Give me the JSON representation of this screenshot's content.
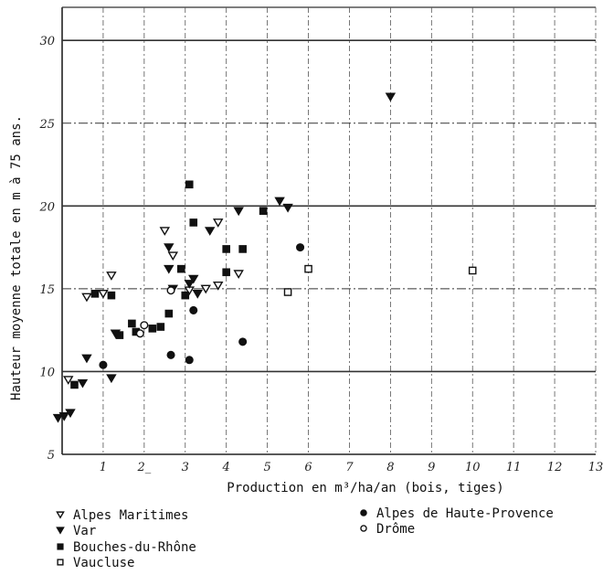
{
  "chart_data": {
    "type": "scatter",
    "xlabel": "Production en m³/ha/an (bois, tiges)",
    "ylabel": "Hauteur moyenne totale en m à 75 ans.",
    "xlim": [
      0,
      13
    ],
    "ylim": [
      5,
      32
    ],
    "x_ticks": [
      {
        "value": 1,
        "label": "1"
      },
      {
        "value": 2,
        "label": "2_"
      },
      {
        "value": 3,
        "label": "3"
      },
      {
        "value": 4,
        "label": "4"
      },
      {
        "value": 5,
        "label": "5"
      },
      {
        "value": 6,
        "label": "6"
      },
      {
        "value": 7,
        "label": "7"
      },
      {
        "value": 8,
        "label": "8"
      },
      {
        "value": 9,
        "label": "9"
      },
      {
        "value": 10,
        "label": "10"
      },
      {
        "value": 11,
        "label": "11"
      },
      {
        "value": 12,
        "label": "12"
      },
      {
        "value": 13,
        "label": "13"
      }
    ],
    "y_ticks": [
      {
        "value": 5,
        "label": "5"
      },
      {
        "value": 10,
        "label": "10"
      },
      {
        "value": 15,
        "label": "15"
      },
      {
        "value": 20,
        "label": "20"
      },
      {
        "value": 25,
        "label": "25"
      },
      {
        "value": 30,
        "label": "30"
      }
    ],
    "grid": true,
    "legend_position": "bottom",
    "series": [
      {
        "name": "Alpes Maritimes",
        "marker": "triangle-down-open",
        "points": [
          [
            0.15,
            9.5
          ],
          [
            0.6,
            14.5
          ],
          [
            1.0,
            14.7
          ],
          [
            1.2,
            15.8
          ],
          [
            2.7,
            17.0
          ],
          [
            2.5,
            18.5
          ],
          [
            3.8,
            19.0
          ],
          [
            3.1,
            14.9
          ],
          [
            3.5,
            15.0
          ],
          [
            3.8,
            15.2
          ],
          [
            4.3,
            15.9
          ]
        ]
      },
      {
        "name": "Var",
        "marker": "triangle-down-filled",
        "points": [
          [
            -0.1,
            7.2
          ],
          [
            0.05,
            7.3
          ],
          [
            0.2,
            7.5
          ],
          [
            0.6,
            10.8
          ],
          [
            0.5,
            9.3
          ],
          [
            1.2,
            9.6
          ],
          [
            1.3,
            12.3
          ],
          [
            2.6,
            17.5
          ],
          [
            2.6,
            16.2
          ],
          [
            2.7,
            15.0
          ],
          [
            3.1,
            15.3
          ],
          [
            3.2,
            15.6
          ],
          [
            3.3,
            14.7
          ],
          [
            3.6,
            18.5
          ],
          [
            4.3,
            19.7
          ],
          [
            5.3,
            20.3
          ],
          [
            5.5,
            19.9
          ],
          [
            8.0,
            26.6
          ]
        ]
      },
      {
        "name": "Bouches-du-Rhône",
        "marker": "square-filled",
        "points": [
          [
            0.3,
            9.2
          ],
          [
            0.8,
            14.7
          ],
          [
            1.2,
            14.6
          ],
          [
            1.4,
            12.2
          ],
          [
            1.8,
            12.4
          ],
          [
            1.7,
            12.9
          ],
          [
            2.2,
            12.6
          ],
          [
            2.4,
            12.7
          ],
          [
            2.6,
            13.5
          ],
          [
            2.9,
            16.2
          ],
          [
            3.0,
            14.6
          ],
          [
            3.1,
            21.3
          ],
          [
            3.2,
            19.0
          ],
          [
            4.0,
            16.0
          ],
          [
            4.0,
            17.4
          ],
          [
            4.4,
            17.4
          ],
          [
            4.9,
            19.7
          ]
        ]
      },
      {
        "name": "Vaucluse",
        "marker": "square-open",
        "points": [
          [
            5.5,
            14.8
          ],
          [
            6.0,
            16.2
          ],
          [
            10.0,
            16.1
          ]
        ]
      },
      {
        "name": "Alpes de Haute-Provence",
        "marker": "circle-filled",
        "points": [
          [
            1.0,
            10.4
          ],
          [
            2.65,
            11.0
          ],
          [
            3.1,
            10.7
          ],
          [
            3.2,
            13.7
          ],
          [
            4.4,
            11.8
          ],
          [
            5.8,
            17.5
          ]
        ]
      },
      {
        "name": "Drôme",
        "marker": "circle-open",
        "points": [
          [
            1.9,
            12.3
          ],
          [
            2.0,
            12.8
          ],
          [
            2.65,
            14.9
          ]
        ]
      }
    ]
  }
}
